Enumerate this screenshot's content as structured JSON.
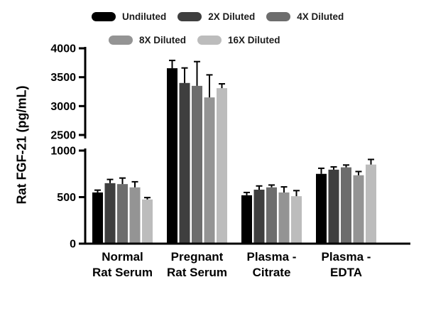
{
  "chart_data": {
    "type": "bar",
    "title": "",
    "ylabel": "Rat FGF-21 (pg/mL)",
    "xlabel": "",
    "grid": false,
    "legend_position": "top",
    "error_bars": "upper-only caps",
    "categories": [
      "Normal Rat Serum",
      "Pregnant Rat Serum",
      "Plasma - Citrate",
      "Plasma - EDTA"
    ],
    "category_label_lines": [
      [
        "Normal",
        "Rat Serum"
      ],
      [
        "Pregnant",
        "Rat Serum"
      ],
      [
        "Plasma -",
        "Citrate"
      ],
      [
        "Plasma -",
        "EDTA"
      ]
    ],
    "axis_break": {
      "lower_range": [
        0,
        1000
      ],
      "upper_range": [
        2500,
        4000
      ],
      "lower_ticks": [
        0,
        500,
        1000
      ],
      "upper_ticks": [
        2500,
        3000,
        3500,
        4000
      ]
    },
    "series": [
      {
        "name": "Undiluted",
        "color": "#000000",
        "values": [
          550,
          3655,
          520,
          750
        ],
        "errors": [
          25,
          135,
          30,
          60
        ]
      },
      {
        "name": "2X Diluted",
        "color": "#3f3f3f",
        "values": [
          650,
          3400,
          580,
          795
        ],
        "errors": [
          40,
          260,
          40,
          30
        ]
      },
      {
        "name": "4X Diluted",
        "color": "#6d6d6d",
        "values": [
          640,
          3350,
          605,
          820
        ],
        "errors": [
          65,
          420,
          25,
          25
        ]
      },
      {
        "name": "8X Diluted",
        "color": "#949494",
        "values": [
          605,
          3150,
          550,
          735
        ],
        "errors": [
          60,
          390,
          60,
          40
        ]
      },
      {
        "name": "16X Diluted",
        "color": "#bcbcbc",
        "values": [
          475,
          3310,
          510,
          850
        ],
        "errors": [
          20,
          75,
          60,
          55
        ]
      }
    ]
  }
}
